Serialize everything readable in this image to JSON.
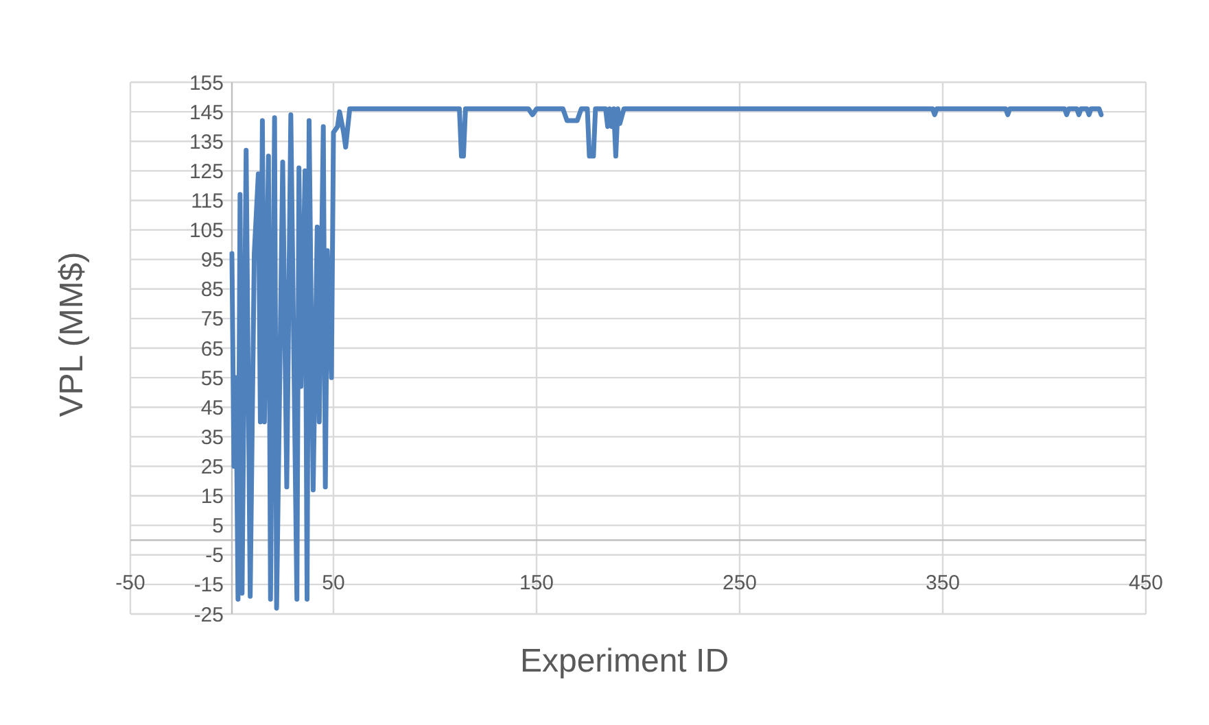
{
  "chart_data": {
    "type": "line",
    "xlabel": "Experiment ID",
    "ylabel": "VPL (MM$)",
    "xlim": [
      -50,
      450
    ],
    "xticks": [
      -50,
      50,
      150,
      250,
      350,
      450
    ],
    "ylim": [
      -25,
      155
    ],
    "yticks": [
      -25,
      -15,
      -5,
      5,
      15,
      25,
      35,
      45,
      55,
      65,
      75,
      85,
      95,
      105,
      115,
      125,
      135,
      145,
      155
    ],
    "grid": true,
    "marker": "none",
    "line_style": "solid",
    "series": [
      {
        "color": "#4f81bd",
        "x": [
          0,
          1,
          2,
          3,
          4,
          5,
          7,
          9,
          11,
          13,
          14,
          15,
          16,
          18,
          19,
          21,
          22,
          25,
          27,
          29,
          32,
          33,
          34,
          36,
          37,
          38,
          40,
          42,
          43,
          45,
          46,
          47,
          49,
          50,
          52,
          53,
          55,
          56,
          58,
          60,
          80,
          112,
          113,
          114,
          115,
          116,
          146,
          148,
          150,
          163,
          165,
          170,
          172,
          175,
          176,
          178,
          179,
          181,
          184,
          185,
          186,
          187,
          188,
          189,
          190,
          191,
          193,
          200,
          260,
          345,
          346,
          347,
          381,
          382,
          383,
          410,
          411,
          412,
          416,
          417,
          418,
          421,
          422,
          423,
          427,
          428
        ],
        "values": [
          97,
          25,
          55,
          -20,
          117,
          -18,
          132,
          -19,
          97,
          124,
          40,
          142,
          40,
          130,
          -20,
          143,
          -23,
          128,
          18,
          144,
          -20,
          126,
          52,
          125,
          -20,
          142,
          17,
          106,
          40,
          140,
          18,
          98,
          55,
          138,
          140,
          145,
          138,
          133,
          146,
          146,
          146,
          146,
          130,
          130,
          146,
          146,
          146,
          144,
          146,
          146,
          142,
          142,
          146,
          146,
          130,
          130,
          146,
          146,
          146,
          140,
          146,
          140,
          146,
          130,
          146,
          141,
          146,
          146,
          146,
          146,
          144,
          146,
          146,
          144,
          146,
          146,
          144,
          146,
          146,
          144,
          146,
          146,
          144,
          146,
          146,
          144
        ]
      }
    ]
  }
}
